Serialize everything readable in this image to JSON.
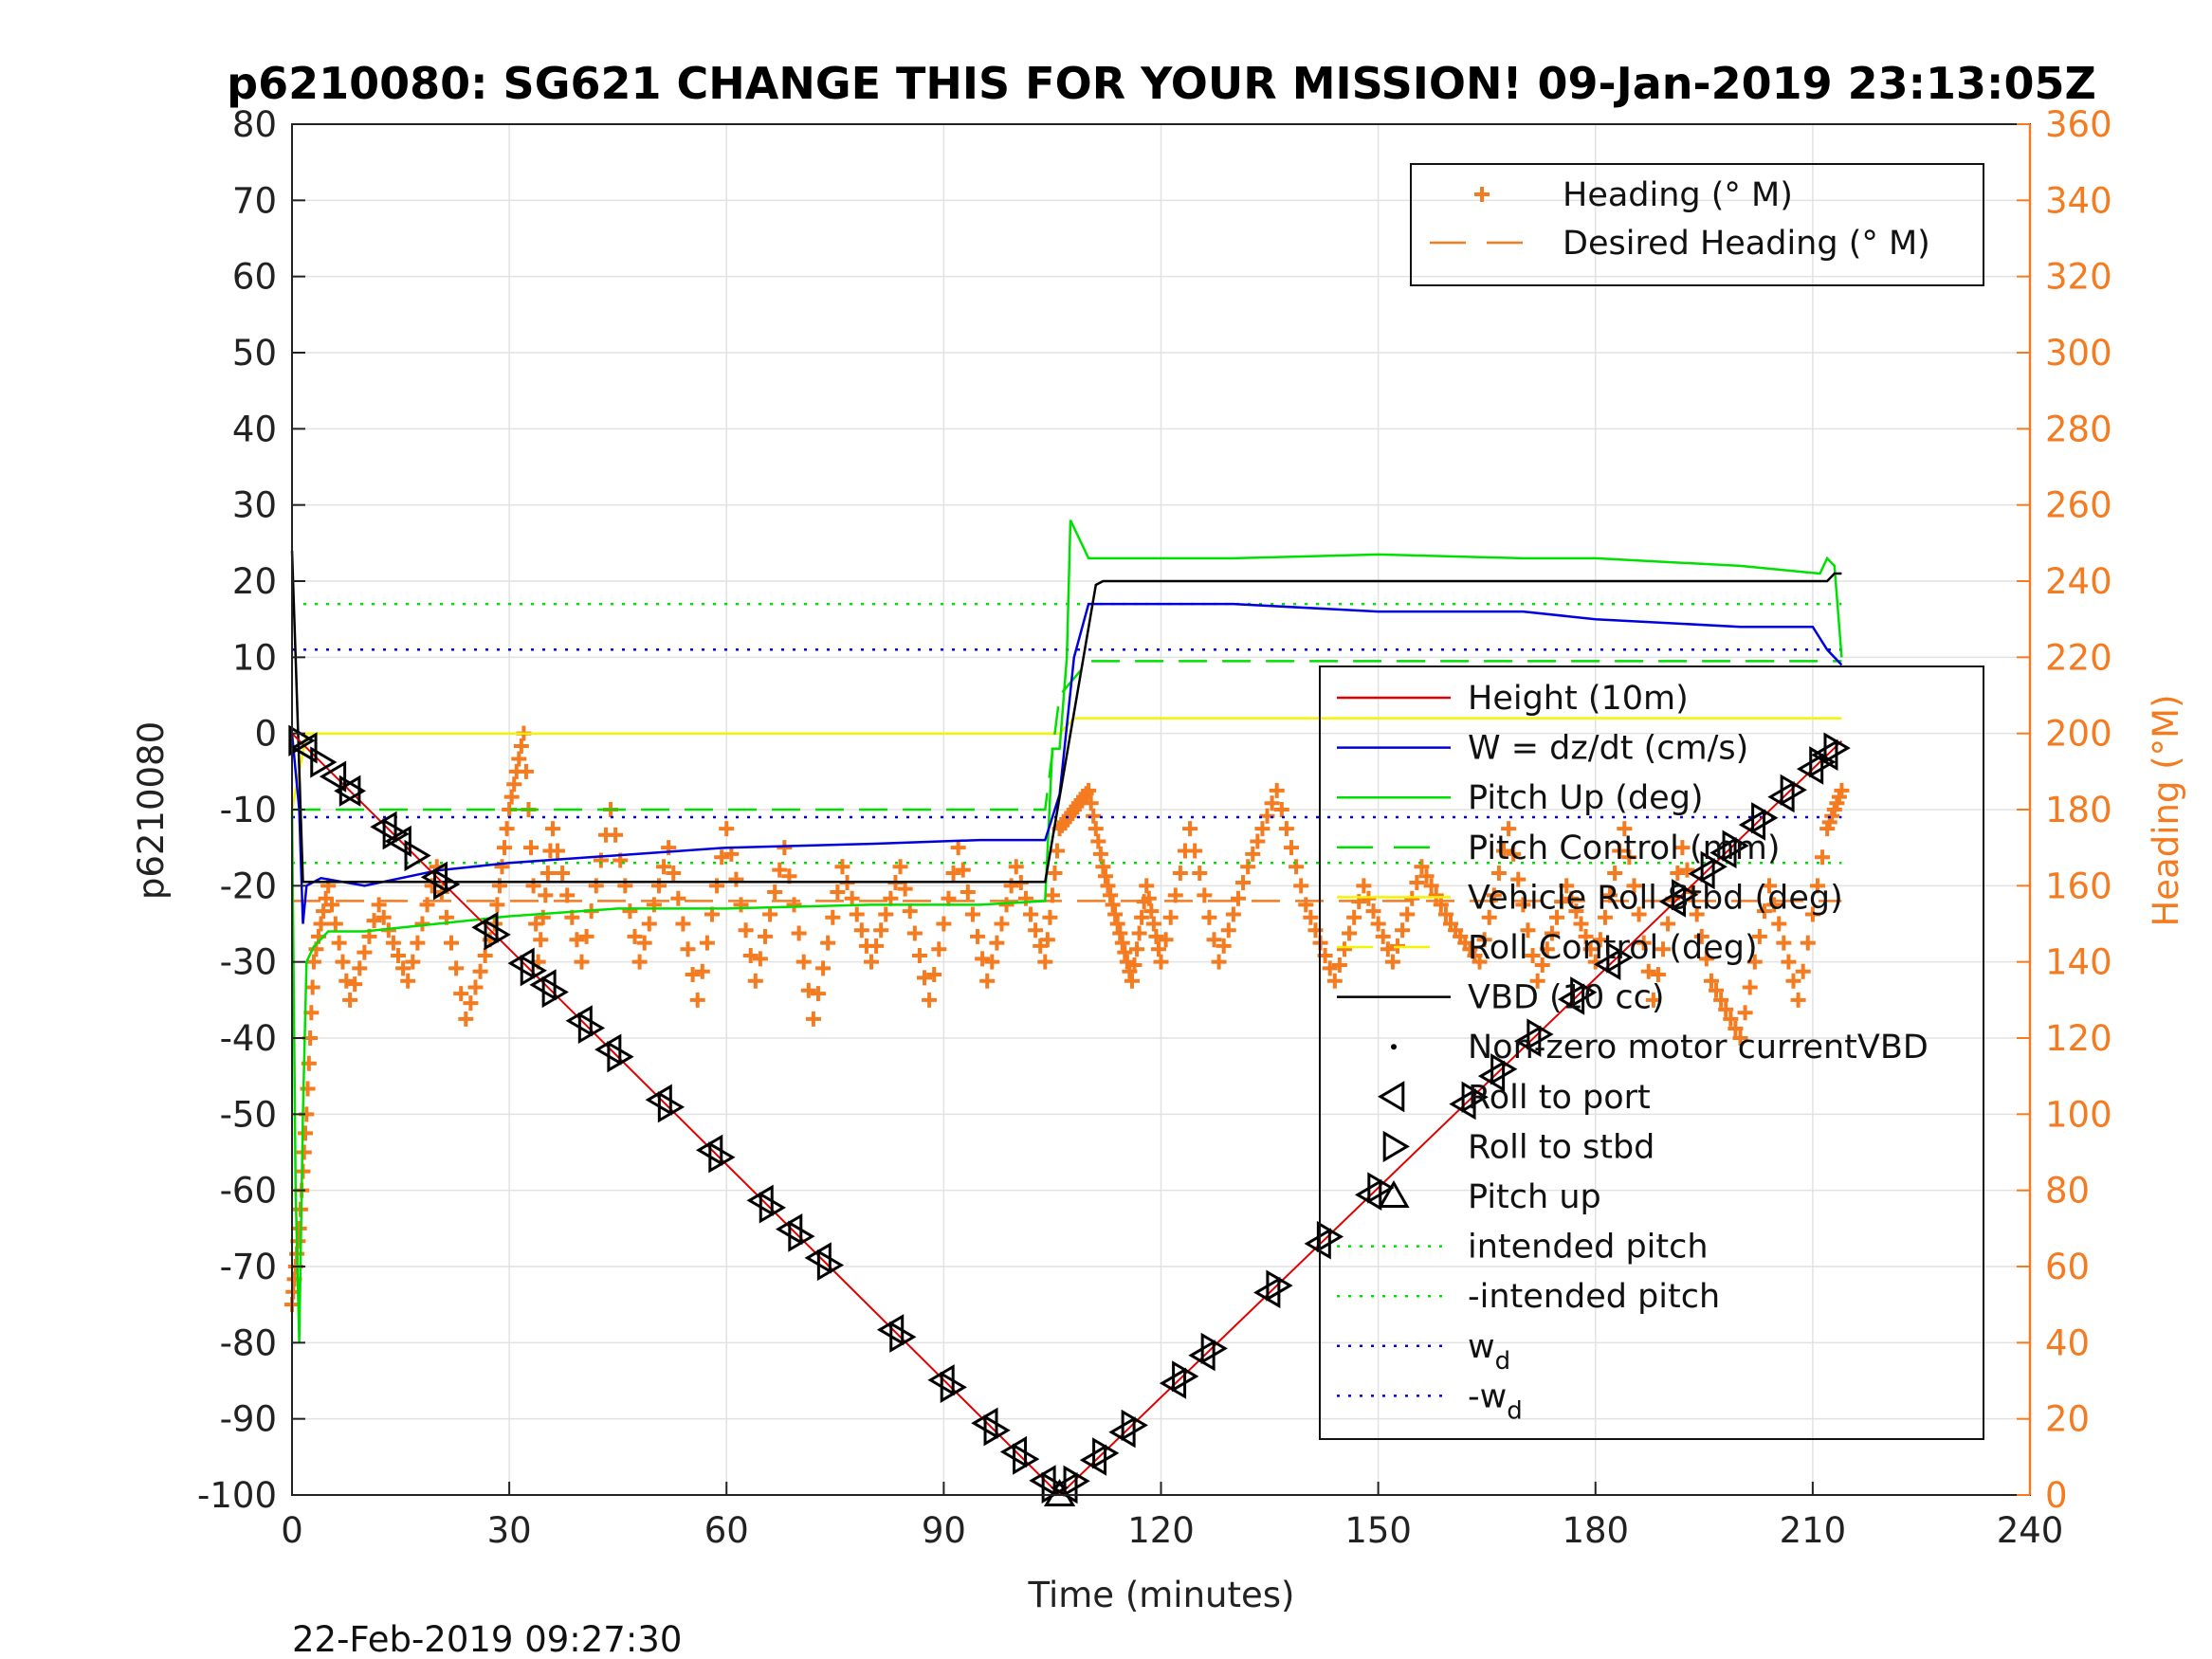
{
  "chart_data": {
    "type": "line",
    "title": "p6210080: SG621 CHANGE THIS FOR YOUR MISSION! 09-Jan-2019 23:13:05Z",
    "xlabel": "Time (minutes)",
    "ylabel": "p6210080",
    "ylabel_right": "Heading (°M)",
    "timestamp": "22-Feb-2019 09:27:30",
    "xlim": [
      0,
      240
    ],
    "ylim": [
      -100,
      80
    ],
    "ylim_right": [
      0,
      360
    ],
    "xticks": [
      0,
      30,
      60,
      90,
      120,
      150,
      180,
      210,
      240
    ],
    "yticks": [
      -100,
      -90,
      -80,
      -70,
      -60,
      -50,
      -40,
      -30,
      -20,
      -10,
      0,
      10,
      20,
      30,
      40,
      50,
      60,
      70,
      80
    ],
    "yticks_right": [
      0,
      20,
      40,
      60,
      80,
      100,
      120,
      140,
      160,
      180,
      200,
      220,
      240,
      260,
      280,
      300,
      320,
      340,
      360
    ],
    "grid": true,
    "legend_right_axis": [
      {
        "name": "Heading (° M)",
        "color": "#f47b20",
        "style": "plus"
      },
      {
        "name": "Desired Heading (° M)",
        "color": "#f47b20",
        "style": "dash"
      }
    ],
    "legend_left_axis": [
      {
        "name": "Height (10m)",
        "color": "#e00000",
        "style": "line"
      },
      {
        "name": "W = dz/dt (cm/s)",
        "color": "#0000dd",
        "style": "line"
      },
      {
        "name": "Pitch Up (deg)",
        "color": "#00e000",
        "style": "line"
      },
      {
        "name": "Pitch Control (mm)",
        "color": "#00e000",
        "style": "dash"
      },
      {
        "name": "Vehicle Roll Stbd (deg)",
        "color": "#f4f400",
        "style": "line"
      },
      {
        "name": "Roll Control (deg)",
        "color": "#f4f400",
        "style": "dash"
      },
      {
        "name": "VBD (10 cc)",
        "color": "#000000",
        "style": "line"
      },
      {
        "name": "Non-zero motor currentVBD",
        "color": "#000000",
        "style": "dot"
      },
      {
        "name": "Roll to port",
        "color": "#000000",
        "style": "tri-left"
      },
      {
        "name": "Roll to stbd",
        "color": "#000000",
        "style": "tri-right"
      },
      {
        "name": "Pitch up",
        "color": "#000000",
        "style": "tri-up"
      },
      {
        "name": "intended pitch",
        "color": "#00e000",
        "style": "dotted"
      },
      {
        "name": "-intended pitch",
        "color": "#00e000",
        "style": "dotted"
      },
      {
        "name": "w",
        "sub": "d",
        "color": "#0000dd",
        "style": "dotted"
      },
      {
        "name": "-w",
        "sub": "d",
        "color": "#0000dd",
        "style": "dotted"
      }
    ],
    "series": [
      {
        "name": "Height (10m)",
        "color": "#e00000",
        "x": [
          0,
          106,
          214
        ],
        "y": [
          0,
          -100,
          -1
        ]
      },
      {
        "name": "W = dz/dt (cm/s)",
        "color": "#0000dd",
        "x": [
          0,
          1,
          1.5,
          2,
          4,
          10,
          20,
          30,
          45,
          60,
          80,
          95,
          104,
          106,
          108,
          110,
          130,
          150,
          170,
          180,
          200,
          210,
          212,
          214
        ],
        "y": [
          0,
          -10,
          -25,
          -20,
          -19,
          -20,
          -18,
          -17,
          -16,
          -15,
          -14.5,
          -14,
          -14,
          -8,
          10,
          17,
          17,
          16,
          16,
          15,
          14,
          14,
          11,
          9
        ]
      },
      {
        "name": "Pitch Up (deg)",
        "color": "#00e000",
        "x": [
          0,
          0.5,
          1,
          1.5,
          2,
          3,
          5,
          10,
          20,
          30,
          45,
          60,
          80,
          95,
          104,
          105,
          106,
          107,
          107.5,
          110,
          130,
          150,
          170,
          180,
          200,
          211,
          212,
          213,
          214
        ],
        "y": [
          -10,
          -60,
          -80,
          -50,
          -30,
          -28,
          -26,
          -26,
          -25,
          -24,
          -23,
          -23,
          -22.5,
          -22.5,
          -22,
          -2,
          -2,
          10,
          28,
          23,
          23,
          23.5,
          23,
          23,
          22,
          21,
          23,
          22,
          10
        ]
      },
      {
        "name": "Pitch Control (mm)",
        "color": "#00e000",
        "x": [
          0,
          2,
          104,
          106,
          110,
          214
        ],
        "y": [
          -10,
          -10,
          -10,
          5,
          9.5,
          9.5
        ]
      },
      {
        "name": "Vehicle Roll Stbd (deg)",
        "color": "#f4f400",
        "x": [
          0,
          2,
          30,
          60,
          90,
          104,
          106,
          108,
          120,
          150,
          180,
          210,
          214
        ],
        "y": [
          -10,
          0,
          0,
          0,
          0,
          0,
          0,
          2,
          2,
          2,
          2,
          2,
          2
        ]
      },
      {
        "name": "VBD (10 cc)",
        "color": "#000000",
        "x": [
          0,
          0.5,
          1.5,
          2,
          104,
          111,
          112,
          212,
          213,
          214
        ],
        "y": [
          24,
          10,
          -19.5,
          -19.5,
          -19.5,
          19.5,
          20,
          20,
          21,
          21
        ]
      },
      {
        "name": "intended pitch",
        "color": "#00e000",
        "x": [
          0,
          214
        ],
        "y": [
          17,
          17
        ]
      },
      {
        "name": "-intended pitch",
        "color": "#00e000",
        "x": [
          0,
          214
        ],
        "y": [
          -17,
          -17
        ]
      },
      {
        "name": "w_d",
        "color": "#0000dd",
        "x": [
          0,
          214
        ],
        "y": [
          11,
          11
        ]
      },
      {
        "name": "-w_d",
        "color": "#0000dd",
        "x": [
          0,
          214
        ],
        "y": [
          -11,
          -11
        ]
      },
      {
        "name": "Desired Heading (° M)",
        "color": "#f47b20",
        "axis": "right",
        "x": [
          0,
          214
        ],
        "y": [
          156,
          156
        ]
      },
      {
        "name": "Heading (° M)",
        "color": "#f47b20",
        "axis": "right",
        "x": [
          0,
          1,
          2,
          3,
          5,
          8,
          12,
          16,
          20,
          24,
          28,
          30,
          32,
          34,
          36,
          40,
          44,
          48,
          52,
          56,
          60,
          64,
          68,
          72,
          76,
          80,
          84,
          88,
          92,
          96,
          100,
          104,
          106,
          108,
          110,
          112,
          114,
          116,
          118,
          120,
          124,
          128,
          132,
          136,
          140,
          144,
          148,
          152,
          156,
          160,
          164,
          168,
          172,
          176,
          180,
          184,
          188,
          192,
          196,
          200,
          204,
          208,
          212,
          214
        ],
        "y": [
          50,
          70,
          100,
          140,
          160,
          130,
          155,
          135,
          165,
          125,
          150,
          180,
          200,
          140,
          175,
          140,
          180,
          140,
          170,
          130,
          175,
          135,
          170,
          125,
          165,
          140,
          165,
          130,
          170,
          135,
          165,
          140,
          175,
          180,
          185,
          165,
          150,
          135,
          160,
          140,
          175,
          140,
          165,
          185,
          155,
          135,
          160,
          140,
          165,
          150,
          140,
          175,
          135,
          160,
          140,
          175,
          130,
          170,
          135,
          120,
          160,
          130,
          175,
          185
        ]
      }
    ],
    "markers": {
      "roll_to_port": {
        "x": [
          2,
          6,
          8,
          13,
          15,
          20,
          27,
          32,
          35,
          40,
          44,
          51,
          58,
          65,
          69,
          73,
          83,
          90,
          96,
          100,
          104,
          107,
          111,
          115,
          122,
          126,
          135,
          142,
          149,
          162,
          166,
          171,
          177,
          182,
          191,
          195,
          198,
          202,
          206,
          210,
          212
        ]
      },
      "roll_to_stbd": {
        "x": [
          1,
          4,
          8,
          14,
          17,
          21,
          28,
          33,
          36,
          41,
          45,
          52,
          59,
          66,
          70,
          74,
          84,
          91,
          97,
          101,
          105,
          108,
          112,
          116,
          123,
          127,
          136,
          143,
          150,
          163,
          167,
          172,
          178,
          183,
          192,
          196,
          199,
          203,
          207,
          211,
          213
        ]
      },
      "pitch_up": {
        "x": [
          106
        ]
      }
    }
  }
}
